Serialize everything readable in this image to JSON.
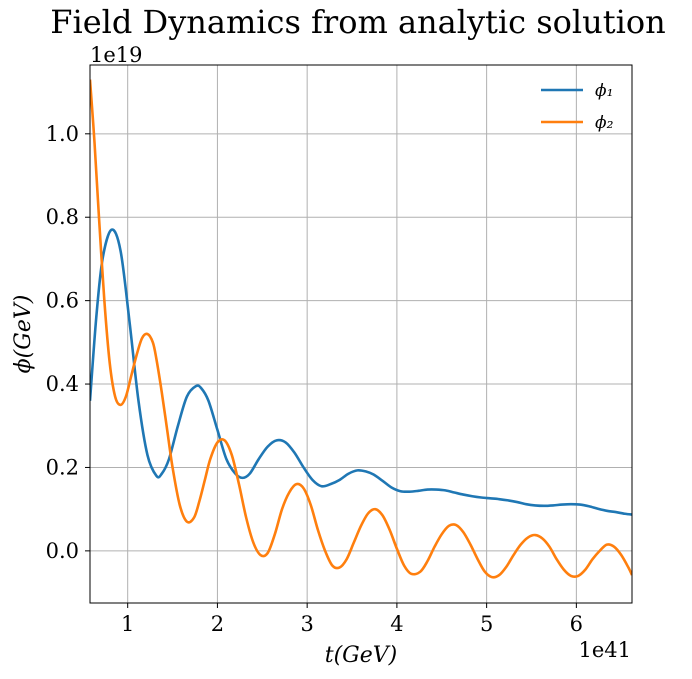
{
  "chart_data": {
    "type": "line",
    "title": "Field Dynamics from analytic solution",
    "xlabel": "t(GeV)",
    "ylabel": "ϕ(GeV)",
    "x_offset_label": "1e41",
    "y_offset_label": "1e19",
    "xlim": [
      0.58,
      6.62
    ],
    "ylim": [
      -0.125,
      1.165
    ],
    "x_ticks": [
      1,
      2,
      3,
      4,
      5,
      6
    ],
    "x_tick_labels": [
      "1",
      "2",
      "3",
      "4",
      "5",
      "6"
    ],
    "y_ticks": [
      0.0,
      0.2,
      0.4,
      0.6,
      0.8,
      1.0
    ],
    "y_tick_labels": [
      "0.0",
      "0.2",
      "0.4",
      "0.6",
      "0.8",
      "1.0"
    ],
    "grid": true,
    "legend_position": "top-right",
    "series": [
      {
        "name": "ϕ₁",
        "color": "#1f77b4",
        "x": [
          0.58,
          0.65,
          0.72,
          0.82,
          0.92,
          1.02,
          1.12,
          1.22,
          1.32,
          1.38,
          1.46,
          1.56,
          1.66,
          1.76,
          1.82,
          1.9,
          2.0,
          2.1,
          2.2,
          2.28,
          2.36,
          2.46,
          2.56,
          2.66,
          2.76,
          2.86,
          2.96,
          3.06,
          3.16,
          3.26,
          3.36,
          3.46,
          3.56,
          3.66,
          3.74,
          3.84,
          3.94,
          4.04,
          4.14,
          4.24,
          4.34,
          4.44,
          4.54,
          4.64,
          4.74,
          4.84,
          4.94,
          5.04,
          5.14,
          5.24,
          5.34,
          5.44,
          5.54,
          5.64,
          5.74,
          5.84,
          5.94,
          6.04,
          6.14,
          6.24,
          6.34,
          6.44,
          6.54,
          6.62
        ],
        "y": [
          0.36,
          0.56,
          0.7,
          0.77,
          0.72,
          0.55,
          0.36,
          0.23,
          0.18,
          0.185,
          0.22,
          0.3,
          0.37,
          0.395,
          0.39,
          0.36,
          0.29,
          0.22,
          0.185,
          0.175,
          0.185,
          0.22,
          0.25,
          0.265,
          0.26,
          0.235,
          0.2,
          0.17,
          0.155,
          0.16,
          0.17,
          0.185,
          0.193,
          0.19,
          0.183,
          0.168,
          0.152,
          0.143,
          0.142,
          0.144,
          0.147,
          0.147,
          0.145,
          0.14,
          0.135,
          0.131,
          0.128,
          0.126,
          0.124,
          0.121,
          0.117,
          0.112,
          0.109,
          0.108,
          0.109,
          0.111,
          0.112,
          0.111,
          0.107,
          0.101,
          0.096,
          0.093,
          0.089,
          0.087
        ]
      },
      {
        "name": "ϕ₂",
        "color": "#ff7f0e",
        "x": [
          0.58,
          0.63,
          0.68,
          0.74,
          0.8,
          0.86,
          0.92,
          0.98,
          1.04,
          1.1,
          1.16,
          1.22,
          1.28,
          1.32,
          1.38,
          1.44,
          1.5,
          1.58,
          1.66,
          1.74,
          1.8,
          1.86,
          1.92,
          2.0,
          2.08,
          2.16,
          2.24,
          2.32,
          2.4,
          2.48,
          2.56,
          2.64,
          2.72,
          2.8,
          2.88,
          2.96,
          3.04,
          3.12,
          3.2,
          3.28,
          3.36,
          3.44,
          3.52,
          3.6,
          3.68,
          3.76,
          3.84,
          3.92,
          4.0,
          4.08,
          4.16,
          4.26,
          4.34,
          4.42,
          4.5,
          4.58,
          4.66,
          4.74,
          4.82,
          4.9,
          4.98,
          5.06,
          5.14,
          5.22,
          5.3,
          5.38,
          5.46,
          5.54,
          5.62,
          5.7,
          5.78,
          5.86,
          5.94,
          6.02,
          6.1,
          6.18,
          6.26,
          6.34,
          6.42,
          6.5,
          6.58,
          6.62
        ],
        "y": [
          1.13,
          0.98,
          0.8,
          0.6,
          0.45,
          0.37,
          0.35,
          0.37,
          0.42,
          0.47,
          0.51,
          0.52,
          0.5,
          0.46,
          0.38,
          0.29,
          0.2,
          0.11,
          0.07,
          0.08,
          0.12,
          0.17,
          0.22,
          0.26,
          0.265,
          0.23,
          0.16,
          0.08,
          0.02,
          -0.01,
          -0.005,
          0.04,
          0.1,
          0.14,
          0.16,
          0.15,
          0.11,
          0.05,
          0.0,
          -0.035,
          -0.04,
          -0.02,
          0.02,
          0.06,
          0.09,
          0.1,
          0.085,
          0.05,
          0.005,
          -0.035,
          -0.055,
          -0.05,
          -0.025,
          0.01,
          0.04,
          0.06,
          0.062,
          0.045,
          0.015,
          -0.02,
          -0.05,
          -0.063,
          -0.058,
          -0.038,
          -0.01,
          0.015,
          0.032,
          0.038,
          0.03,
          0.01,
          -0.02,
          -0.045,
          -0.06,
          -0.06,
          -0.045,
          -0.02,
          0.0,
          0.015,
          0.01,
          -0.01,
          -0.04,
          -0.058
        ]
      }
    ]
  }
}
